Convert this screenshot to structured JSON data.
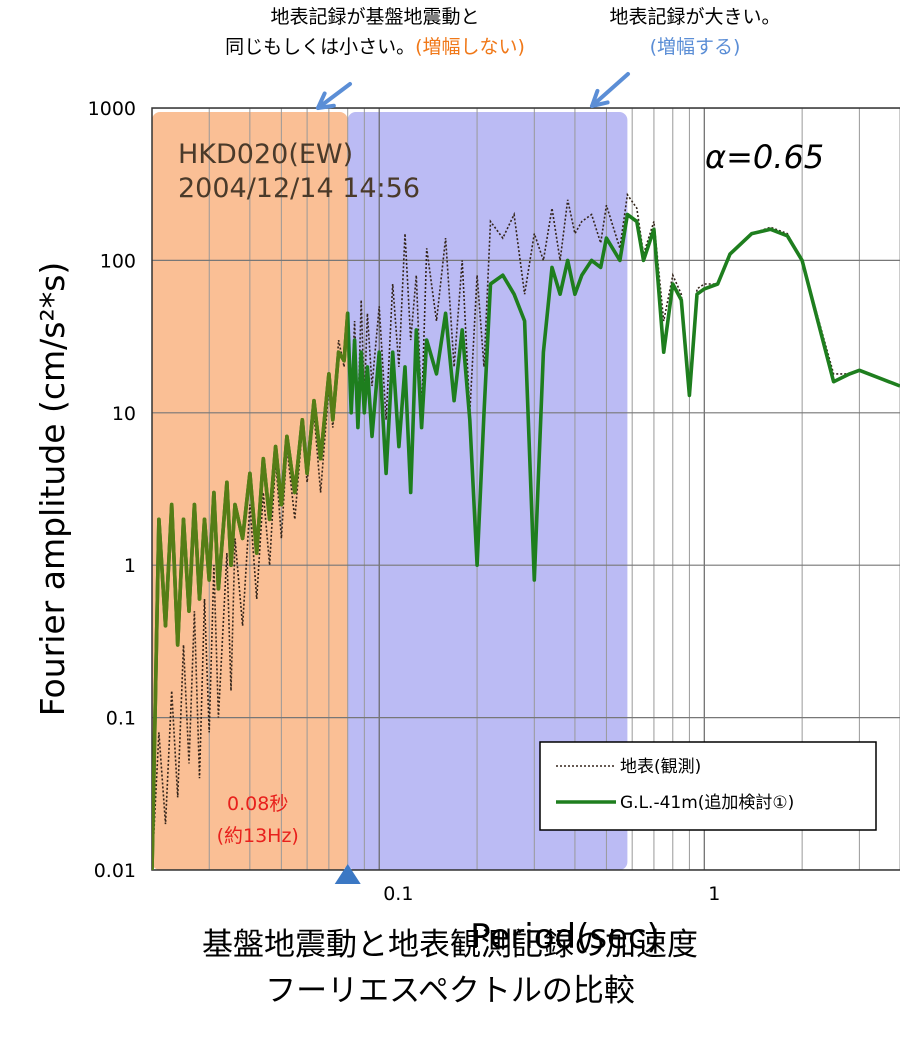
{
  "annotations": {
    "left_line1": "地表記録が基盤地震動と",
    "left_line2_prefix": "同じもしくは小さい。",
    "left_line2_highlight": "(増幅しない)",
    "right_line1": "地表記録が大きい。",
    "right_line2": "(増幅する)"
  },
  "caption": {
    "line1": "基盤地震動と地表観測記録の加速度",
    "line2": "フーリエスペクトルの比較"
  },
  "colors": {
    "orange_band": "#f9b88a",
    "blue_band": "#9e9ef0",
    "green_series": "#1e7e1e",
    "olive_overlap": "#557d16",
    "dotted_series": "#33241a",
    "orange_text": "#f07818",
    "blue_text": "#5b8ed6",
    "arrow": "#5b8ed6",
    "red_text": "#e8201c"
  },
  "chart_data": {
    "type": "line",
    "title": "",
    "xlabel": "Period(sec)",
    "ylabel": "Fourier amplitude (cm/s²*s)",
    "x_scale": "log",
    "y_scale": "log",
    "xlim": [
      0.02,
      4
    ],
    "ylim": [
      0.01,
      1000
    ],
    "x_ticks": [
      {
        "value": 0.1,
        "label": "0.1"
      },
      {
        "value": 1,
        "label": "1"
      }
    ],
    "y_ticks": [
      {
        "value": 0.01,
        "label": "0.01"
      },
      {
        "value": 0.1,
        "label": "0.1"
      },
      {
        "value": 1,
        "label": "1"
      },
      {
        "value": 10,
        "label": "10"
      },
      {
        "value": 100,
        "label": "100"
      },
      {
        "value": 1000,
        "label": "1000"
      }
    ],
    "grid": "log-minor",
    "legend_position": "bottom-right",
    "station_label": "HKD020(EW)",
    "datetime_label": "2004/12/14 14:56",
    "alpha_label": "α=0.65",
    "bands": [
      {
        "name": "not-amplified",
        "x_start": 0.02,
        "x_end": 0.08,
        "color": "#f9b88a"
      },
      {
        "name": "amplified",
        "x_start": 0.08,
        "x_end": 0.58,
        "color": "#9e9ef0"
      }
    ],
    "marker": {
      "x": 0.08,
      "label_line1": "0.08秒",
      "label_line2": "(約13Hz)"
    },
    "series": [
      {
        "name": "地表(観測)",
        "style": "dotted",
        "color": "#33241a",
        "points": [
          [
            0.02,
            0.01
          ],
          [
            0.021,
            0.08
          ],
          [
            0.022,
            0.02
          ],
          [
            0.023,
            0.15
          ],
          [
            0.024,
            0.03
          ],
          [
            0.025,
            0.3
          ],
          [
            0.026,
            0.05
          ],
          [
            0.027,
            0.5
          ],
          [
            0.028,
            0.04
          ],
          [
            0.029,
            0.6
          ],
          [
            0.03,
            0.08
          ],
          [
            0.031,
            1.0
          ],
          [
            0.032,
            0.1
          ],
          [
            0.034,
            1.2
          ],
          [
            0.035,
            0.15
          ],
          [
            0.036,
            1.5
          ],
          [
            0.038,
            0.4
          ],
          [
            0.04,
            2.5
          ],
          [
            0.042,
            0.6
          ],
          [
            0.044,
            3.0
          ],
          [
            0.046,
            1.0
          ],
          [
            0.048,
            5.0
          ],
          [
            0.05,
            1.5
          ],
          [
            0.052,
            6.0
          ],
          [
            0.055,
            2.0
          ],
          [
            0.058,
            8.0
          ],
          [
            0.06,
            3.5
          ],
          [
            0.063,
            10.0
          ],
          [
            0.066,
            3.0
          ],
          [
            0.07,
            15.0
          ],
          [
            0.072,
            8.0
          ],
          [
            0.075,
            30.0
          ],
          [
            0.078,
            20.0
          ],
          [
            0.08,
            45.0
          ],
          [
            0.082,
            12.0
          ],
          [
            0.084,
            40.0
          ],
          [
            0.086,
            9.0
          ],
          [
            0.088,
            55.0
          ],
          [
            0.09,
            12.0
          ],
          [
            0.092,
            45.0
          ],
          [
            0.095,
            15.0
          ],
          [
            0.1,
            50.0
          ],
          [
            0.105,
            9.0
          ],
          [
            0.11,
            70.0
          ],
          [
            0.115,
            20.0
          ],
          [
            0.12,
            150.0
          ],
          [
            0.125,
            30.0
          ],
          [
            0.13,
            80.0
          ],
          [
            0.135,
            10.0
          ],
          [
            0.14,
            120.0
          ],
          [
            0.15,
            40.0
          ],
          [
            0.16,
            140.0
          ],
          [
            0.17,
            20.0
          ],
          [
            0.18,
            100.0
          ],
          [
            0.19,
            10.0
          ],
          [
            0.2,
            80.0
          ],
          [
            0.21,
            20.0
          ],
          [
            0.22,
            180.0
          ],
          [
            0.24,
            140.0
          ],
          [
            0.26,
            200.0
          ],
          [
            0.28,
            60.0
          ],
          [
            0.3,
            150.0
          ],
          [
            0.32,
            100.0
          ],
          [
            0.34,
            220.0
          ],
          [
            0.36,
            100.0
          ],
          [
            0.38,
            250.0
          ],
          [
            0.4,
            150.0
          ],
          [
            0.42,
            180.0
          ],
          [
            0.45,
            200.0
          ],
          [
            0.48,
            130.0
          ],
          [
            0.5,
            230.0
          ],
          [
            0.55,
            120.0
          ],
          [
            0.58,
            270.0
          ],
          [
            0.62,
            220.0
          ],
          [
            0.65,
            110.0
          ],
          [
            0.7,
            180.0
          ],
          [
            0.75,
            40.0
          ],
          [
            0.8,
            80.0
          ],
          [
            0.85,
            60.0
          ],
          [
            0.9,
            15.0
          ],
          [
            0.95,
            65.0
          ],
          [
            1.0,
            70.0
          ],
          [
            1.1,
            70.0
          ],
          [
            1.2,
            110.0
          ],
          [
            1.4,
            150.0
          ],
          [
            1.6,
            165.0
          ],
          [
            1.8,
            150.0
          ],
          [
            2.0,
            100.0
          ],
          [
            2.5,
            18.0
          ],
          [
            2.8,
            18.0
          ],
          [
            3.0,
            19.0
          ],
          [
            4.0,
            15.0
          ]
        ]
      },
      {
        "name": "G.L.-41m(追加検討①)",
        "style": "solid",
        "color": "#1e7e1e",
        "points": [
          [
            0.02,
            0.01
          ],
          [
            0.021,
            2.0
          ],
          [
            0.022,
            0.4
          ],
          [
            0.023,
            2.5
          ],
          [
            0.024,
            0.3
          ],
          [
            0.025,
            2.0
          ],
          [
            0.026,
            0.5
          ],
          [
            0.027,
            2.5
          ],
          [
            0.028,
            0.6
          ],
          [
            0.029,
            2.0
          ],
          [
            0.03,
            0.8
          ],
          [
            0.031,
            3.0
          ],
          [
            0.032,
            0.7
          ],
          [
            0.034,
            3.5
          ],
          [
            0.035,
            1.0
          ],
          [
            0.036,
            2.5
          ],
          [
            0.038,
            1.5
          ],
          [
            0.04,
            4.0
          ],
          [
            0.042,
            1.2
          ],
          [
            0.044,
            5.0
          ],
          [
            0.046,
            2.0
          ],
          [
            0.048,
            6.0
          ],
          [
            0.05,
            2.5
          ],
          [
            0.052,
            7.0
          ],
          [
            0.055,
            3.0
          ],
          [
            0.058,
            9.0
          ],
          [
            0.06,
            4.0
          ],
          [
            0.063,
            12.0
          ],
          [
            0.066,
            5.0
          ],
          [
            0.07,
            18.0
          ],
          [
            0.072,
            9.0
          ],
          [
            0.075,
            25.0
          ],
          [
            0.078,
            22.0
          ],
          [
            0.08,
            45.0
          ],
          [
            0.082,
            10.0
          ],
          [
            0.084,
            30.0
          ],
          [
            0.086,
            8.0
          ],
          [
            0.088,
            25.0
          ],
          [
            0.09,
            10.0
          ],
          [
            0.092,
            20.0
          ],
          [
            0.095,
            7.0
          ],
          [
            0.1,
            25.0
          ],
          [
            0.105,
            4.0
          ],
          [
            0.11,
            25.0
          ],
          [
            0.115,
            6.0
          ],
          [
            0.12,
            20.0
          ],
          [
            0.125,
            3.0
          ],
          [
            0.13,
            35.0
          ],
          [
            0.135,
            8.0
          ],
          [
            0.14,
            30.0
          ],
          [
            0.15,
            18.0
          ],
          [
            0.16,
            45.0
          ],
          [
            0.17,
            12.0
          ],
          [
            0.18,
            35.0
          ],
          [
            0.19,
            9.0
          ],
          [
            0.2,
            1.0
          ],
          [
            0.21,
            10.0
          ],
          [
            0.22,
            70.0
          ],
          [
            0.24,
            80.0
          ],
          [
            0.26,
            60.0
          ],
          [
            0.28,
            40.0
          ],
          [
            0.3,
            0.8
          ],
          [
            0.32,
            25.0
          ],
          [
            0.34,
            90.0
          ],
          [
            0.36,
            60.0
          ],
          [
            0.38,
            100.0
          ],
          [
            0.4,
            60.0
          ],
          [
            0.42,
            80.0
          ],
          [
            0.45,
            100.0
          ],
          [
            0.48,
            90.0
          ],
          [
            0.5,
            140.0
          ],
          [
            0.55,
            100.0
          ],
          [
            0.58,
            200.0
          ],
          [
            0.62,
            180.0
          ],
          [
            0.65,
            100.0
          ],
          [
            0.7,
            160.0
          ],
          [
            0.75,
            25.0
          ],
          [
            0.8,
            70.0
          ],
          [
            0.85,
            55.0
          ],
          [
            0.9,
            13.0
          ],
          [
            0.95,
            60.0
          ],
          [
            1.0,
            65.0
          ],
          [
            1.1,
            70.0
          ],
          [
            1.2,
            110.0
          ],
          [
            1.4,
            150.0
          ],
          [
            1.6,
            160.0
          ],
          [
            1.8,
            145.0
          ],
          [
            2.0,
            100.0
          ],
          [
            2.5,
            16.0
          ],
          [
            2.8,
            18.0
          ],
          [
            3.0,
            19.0
          ],
          [
            4.0,
            15.0
          ]
        ]
      }
    ]
  }
}
